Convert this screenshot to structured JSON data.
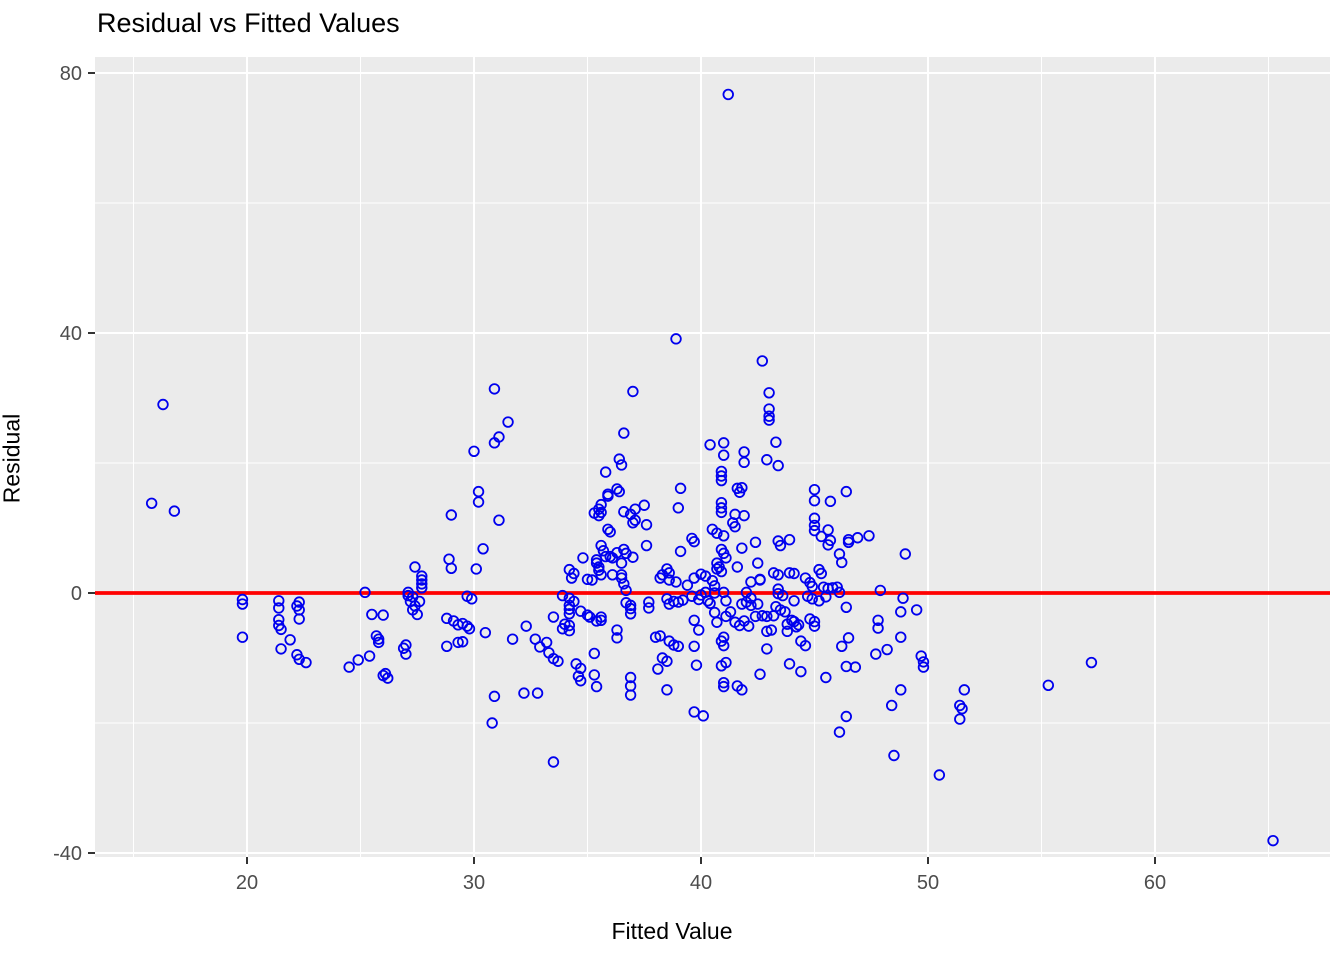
{
  "chart_data": {
    "type": "scatter",
    "title": "Residual vs Fitted Values",
    "xlabel": "Fitted Value",
    "ylabel": "Residual",
    "x_ticks": [
      20,
      30,
      40,
      50,
      60
    ],
    "y_ticks": [
      80,
      40,
      0,
      -40
    ],
    "x_minor_ticks": [
      15,
      25,
      35,
      45,
      55,
      65
    ],
    "y_minor_ticks": [
      60,
      20,
      -20
    ],
    "xlim": [
      13.3,
      67.7
    ],
    "ylim": [
      -40.6,
      82.5
    ],
    "legend": "none",
    "grid": "on",
    "reference_line": {
      "type": "hline",
      "y": 0,
      "color": "#FF0000"
    },
    "colors": {
      "point_stroke": "#0000EE",
      "panel_background": "#EBEBEB",
      "grid_line": "#FFFFFF",
      "axis_tick_text": "#4D4D4D",
      "axis_tick_mark": "#333333",
      "title_text": "#000000"
    },
    "points": [
      [
        15.8,
        13.8
      ],
      [
        16.3,
        29
      ],
      [
        16.8,
        12.6
      ],
      [
        19.8,
        -1
      ],
      [
        19.8,
        -1.7
      ],
      [
        19.8,
        -6.8
      ],
      [
        21.4,
        -1.2
      ],
      [
        21.4,
        -2.3
      ],
      [
        21.4,
        -4.1
      ],
      [
        21.4,
        -5
      ],
      [
        21.5,
        -5.6
      ],
      [
        21.5,
        -8.6
      ],
      [
        21.9,
        -7.2
      ],
      [
        22.3,
        -1.4
      ],
      [
        22.2,
        -2
      ],
      [
        22.3,
        -2.6
      ],
      [
        22.3,
        -4
      ],
      [
        22.2,
        -9.5
      ],
      [
        22.3,
        -10.2
      ],
      [
        22.6,
        -10.7
      ],
      [
        24.5,
        -11.4
      ],
      [
        24.9,
        -10.3
      ],
      [
        25.4,
        -9.7
      ],
      [
        25.2,
        0.1
      ],
      [
        25.5,
        -3.3
      ],
      [
        26,
        -3.4
      ],
      [
        25.7,
        -6.6
      ],
      [
        25.8,
        -7.1
      ],
      [
        25.8,
        -7.6
      ],
      [
        26,
        -12.7
      ],
      [
        26.2,
        -13.1
      ],
      [
        26.1,
        -12.4
      ],
      [
        26.9,
        -8.5
      ],
      [
        27,
        -8
      ],
      [
        27,
        -9.4
      ],
      [
        27.4,
        4
      ],
      [
        27.7,
        2.6
      ],
      [
        27.7,
        2
      ],
      [
        27.7,
        1.4
      ],
      [
        27.7,
        0.8
      ],
      [
        27.1,
        0.1
      ],
      [
        27.1,
        -0.4
      ],
      [
        27.3,
        -0.6
      ],
      [
        27.2,
        -1.3
      ],
      [
        27.6,
        -1.3
      ],
      [
        27.4,
        -2
      ],
      [
        27.3,
        -2.6
      ],
      [
        27.5,
        -3.3
      ],
      [
        28.9,
        5.2
      ],
      [
        29,
        3.8
      ],
      [
        30.1,
        3.7
      ],
      [
        30.4,
        6.8
      ],
      [
        28.8,
        -3.9
      ],
      [
        29.1,
        -4.3
      ],
      [
        29.3,
        -4.9
      ],
      [
        29.5,
        -4.7
      ],
      [
        29.7,
        -5.1
      ],
      [
        29.8,
        -5.5
      ],
      [
        29.7,
        -0.5
      ],
      [
        29.9,
        -0.9
      ],
      [
        28.8,
        -8.2
      ],
      [
        29.3,
        -7.6
      ],
      [
        29.5,
        -7.5
      ],
      [
        30.5,
        -6.1
      ],
      [
        30.9,
        -15.9
      ],
      [
        30.8,
        -20
      ],
      [
        29,
        12
      ],
      [
        30.2,
        15.6
      ],
      [
        30.2,
        14
      ],
      [
        30,
        21.8
      ],
      [
        30.9,
        23.1
      ],
      [
        31.1,
        24
      ],
      [
        30.9,
        31.4
      ],
      [
        31.5,
        26.3
      ],
      [
        31.1,
        11.2
      ],
      [
        32.3,
        -5.1
      ],
      [
        31.7,
        -7.1
      ],
      [
        32.7,
        -7.1
      ],
      [
        32.9,
        -8.3
      ],
      [
        33.2,
        -7.6
      ],
      [
        33.3,
        -9.2
      ],
      [
        33.5,
        -10.1
      ],
      [
        33.7,
        -10.5
      ],
      [
        32.2,
        -15.4
      ],
      [
        32.8,
        -15.4
      ],
      [
        33.5,
        -26
      ],
      [
        33.5,
        -3.7
      ],
      [
        34.2,
        3.6
      ],
      [
        34.3,
        2.3
      ],
      [
        34.4,
        3
      ],
      [
        35,
        2.1
      ],
      [
        35.2,
        2
      ],
      [
        34.8,
        5.4
      ],
      [
        33.9,
        -0.4
      ],
      [
        34.2,
        -0.8
      ],
      [
        34.4,
        -1.3
      ],
      [
        34.2,
        -1.9
      ],
      [
        34.2,
        -2.5
      ],
      [
        34.2,
        -3.2
      ],
      [
        34.7,
        -2.8
      ],
      [
        35,
        -3.4
      ],
      [
        35.1,
        -3.7
      ],
      [
        35.6,
        -3.7
      ],
      [
        34,
        -4.8
      ],
      [
        34.2,
        -5
      ],
      [
        33.9,
        -5.5
      ],
      [
        34.2,
        -5.8
      ],
      [
        34.5,
        -10.9
      ],
      [
        34.7,
        -11.6
      ],
      [
        34.6,
        -12.8
      ],
      [
        34.7,
        -13.5
      ],
      [
        35.3,
        -9.3
      ],
      [
        35.3,
        -12.6
      ],
      [
        35.4,
        -14.4
      ],
      [
        35.4,
        -4.3
      ],
      [
        35.6,
        -4.2
      ],
      [
        35.4,
        5.1
      ],
      [
        35.4,
        4.6
      ],
      [
        35.5,
        4
      ],
      [
        35.5,
        3.5
      ],
      [
        35.8,
        5.6
      ],
      [
        36,
        5.6
      ],
      [
        36.1,
        5.4
      ],
      [
        36.3,
        6.2
      ],
      [
        35.6,
        2.8
      ],
      [
        36.1,
        2.8
      ],
      [
        35.6,
        13.6
      ],
      [
        35.5,
        12.9
      ],
      [
        35.6,
        12.4
      ],
      [
        35.3,
        12.3
      ],
      [
        35.5,
        11.9
      ],
      [
        35.9,
        15.2
      ],
      [
        35.9,
        14.9
      ],
      [
        35.8,
        18.6
      ],
      [
        35.9,
        9.8
      ],
      [
        36,
        9.4
      ],
      [
        35.6,
        7.3
      ],
      [
        35.7,
        6.5
      ],
      [
        36.3,
        16
      ],
      [
        36.4,
        15.6
      ],
      [
        36.4,
        20.6
      ],
      [
        36.5,
        19.7
      ],
      [
        36.6,
        24.6
      ],
      [
        36.6,
        12.5
      ],
      [
        36.9,
        12.1
      ],
      [
        37.1,
        12.9
      ],
      [
        37.5,
        13.5
      ],
      [
        36.6,
        6.7
      ],
      [
        36.7,
        6.1
      ],
      [
        37,
        5.5
      ],
      [
        36.5,
        4.6
      ],
      [
        36.5,
        2.8
      ],
      [
        36.5,
        2.3
      ],
      [
        36.6,
        1.4
      ],
      [
        36.7,
        0.4
      ],
      [
        37,
        31
      ],
      [
        37,
        10.8
      ],
      [
        37.1,
        11.2
      ],
      [
        37.6,
        10.5
      ],
      [
        37.6,
        7.3
      ],
      [
        38.9,
        39.1
      ],
      [
        36.3,
        -5.7
      ],
      [
        36.3,
        -6.9
      ],
      [
        36.9,
        -13
      ],
      [
        36.9,
        -14.3
      ],
      [
        36.9,
        -15.7
      ],
      [
        36.9,
        -1.9
      ],
      [
        36.9,
        -3.2
      ],
      [
        36.7,
        -1.5
      ],
      [
        36.9,
        -2.4
      ],
      [
        37.7,
        -1.4
      ],
      [
        37.7,
        -2.3
      ],
      [
        38,
        -6.8
      ],
      [
        38.2,
        -6.6
      ],
      [
        38.3,
        2.8
      ],
      [
        38.6,
        2
      ],
      [
        38.9,
        1.7
      ],
      [
        38.2,
        2.3
      ],
      [
        38.5,
        3.7
      ],
      [
        38.6,
        3.1
      ],
      [
        38.5,
        -0.9
      ],
      [
        38.6,
        -1.7
      ],
      [
        38.8,
        -1.3
      ],
      [
        39,
        -1.4
      ],
      [
        39.2,
        -1.1
      ],
      [
        38.6,
        -7.4
      ],
      [
        38.8,
        -8
      ],
      [
        39,
        -8.2
      ],
      [
        38.3,
        -10
      ],
      [
        38.5,
        -10.5
      ],
      [
        38.1,
        -11.7
      ],
      [
        38.5,
        -14.9
      ],
      [
        39.1,
        16.1
      ],
      [
        39,
        13.1
      ],
      [
        39.1,
        6.4
      ],
      [
        39.6,
        8.4
      ],
      [
        39.7,
        7.9
      ],
      [
        39.4,
        1.2
      ],
      [
        39.7,
        2.3
      ],
      [
        40,
        2.9
      ],
      [
        40.2,
        2.6
      ],
      [
        40.5,
        1.9
      ],
      [
        40.6,
        1.1
      ],
      [
        40,
        -0.3
      ],
      [
        40.3,
        -1.2
      ],
      [
        40.2,
        0.1
      ],
      [
        39.6,
        -0.5
      ],
      [
        39.9,
        -1
      ],
      [
        40.4,
        -1.6
      ],
      [
        40.6,
        0
      ],
      [
        41,
        0.1
      ],
      [
        41.1,
        -1.2
      ],
      [
        42,
        0.1
      ],
      [
        42.2,
        -0.8
      ],
      [
        39.7,
        -4.2
      ],
      [
        39.9,
        -5.7
      ],
      [
        39.7,
        -8.2
      ],
      [
        39.8,
        -11.1
      ],
      [
        39.7,
        -18.3
      ],
      [
        40.1,
        -18.9
      ],
      [
        40.6,
        -3
      ],
      [
        40.7,
        -4.5
      ],
      [
        41.1,
        -3.6
      ],
      [
        41.3,
        -2.9
      ],
      [
        41,
        -6.8
      ],
      [
        40.9,
        -7.4
      ],
      [
        41,
        -8.1
      ],
      [
        40.9,
        -11.2
      ],
      [
        41.1,
        -10.7
      ],
      [
        41,
        -13.8
      ],
      [
        41,
        -14.4
      ],
      [
        40.9,
        18.7
      ],
      [
        40.9,
        18
      ],
      [
        40.9,
        17.3
      ],
      [
        40.9,
        13.9
      ],
      [
        40.9,
        13.1
      ],
      [
        40.9,
        12.4
      ],
      [
        40.4,
        22.8
      ],
      [
        41,
        23.1
      ],
      [
        41,
        21.2
      ],
      [
        41.9,
        21.7
      ],
      [
        41.9,
        20.1
      ],
      [
        41.6,
        16.1
      ],
      [
        41.7,
        15.5
      ],
      [
        41.8,
        16.2
      ],
      [
        41.5,
        12.1
      ],
      [
        41.9,
        11.9
      ],
      [
        41.4,
        10.8
      ],
      [
        41.5,
        10.2
      ],
      [
        40.5,
        9.8
      ],
      [
        40.7,
        9.2
      ],
      [
        41,
        8.8
      ],
      [
        40.9,
        6.7
      ],
      [
        41,
        6.1
      ],
      [
        41.1,
        5.4
      ],
      [
        41.8,
        6.9
      ],
      [
        40.7,
        4.6
      ],
      [
        40.8,
        4
      ],
      [
        40.7,
        3.7
      ],
      [
        40.9,
        3.3
      ],
      [
        41.6,
        4
      ],
      [
        41.2,
        76.7
      ],
      [
        42.5,
        4.6
      ],
      [
        42.6,
        2.1
      ],
      [
        42.2,
        1.7
      ],
      [
        42.6,
        2
      ],
      [
        43.2,
        3.1
      ],
      [
        43.4,
        0.6
      ],
      [
        42.7,
        35.7
      ],
      [
        43,
        30.8
      ],
      [
        43,
        28.3
      ],
      [
        43,
        27.2
      ],
      [
        43,
        26.6
      ],
      [
        43.3,
        23.2
      ],
      [
        42.9,
        20.5
      ],
      [
        43.4,
        19.6
      ],
      [
        41.8,
        -1.7
      ],
      [
        42,
        -1.4
      ],
      [
        42.2,
        -1.9
      ],
      [
        42.5,
        -1.7
      ],
      [
        42.4,
        -3.6
      ],
      [
        42.7,
        -3.5
      ],
      [
        42.9,
        -3.6
      ],
      [
        43.2,
        -3.5
      ],
      [
        41.9,
        -4.3
      ],
      [
        42.1,
        -5.1
      ],
      [
        41.5,
        -4.5
      ],
      [
        41.7,
        -5
      ],
      [
        42.9,
        -5.9
      ],
      [
        43.1,
        -5.7
      ],
      [
        42.9,
        -8.6
      ],
      [
        42.6,
        -12.5
      ],
      [
        41.6,
        -14.3
      ],
      [
        41.8,
        -14.9
      ],
      [
        43.4,
        2.8
      ],
      [
        44.1,
        3
      ],
      [
        43.9,
        8.2
      ],
      [
        43.4,
        8
      ],
      [
        43.5,
        7.3
      ],
      [
        42.4,
        7.8
      ],
      [
        43.9,
        3.1
      ],
      [
        44.6,
        2.3
      ],
      [
        44.8,
        1.6
      ],
      [
        44.9,
        1
      ],
      [
        43.4,
        -0.1
      ],
      [
        43.6,
        -0.4
      ],
      [
        44.1,
        -1.2
      ],
      [
        43.3,
        -2.1
      ],
      [
        43.5,
        -2.6
      ],
      [
        43.7,
        -2.9
      ],
      [
        44,
        -4.2
      ],
      [
        44.2,
        -5.2
      ],
      [
        43.8,
        -5.9
      ],
      [
        43.8,
        -4.8
      ],
      [
        44.1,
        -4.4
      ],
      [
        44.3,
        -4.9
      ],
      [
        44.4,
        -7.4
      ],
      [
        44.6,
        -8.1
      ],
      [
        43.9,
        -10.9
      ],
      [
        44.4,
        -12.1
      ],
      [
        45,
        15.9
      ],
      [
        45,
        14.2
      ],
      [
        45.7,
        14.1
      ],
      [
        46.4,
        15.6
      ],
      [
        45,
        11.5
      ],
      [
        45,
        10.4
      ],
      [
        45,
        9.6
      ],
      [
        45.6,
        9.7
      ],
      [
        45.3,
        8.7
      ],
      [
        45.7,
        8.1
      ],
      [
        45.6,
        7.4
      ],
      [
        46.5,
        7.8
      ],
      [
        46.5,
        8.2
      ],
      [
        46.9,
        8.5
      ],
      [
        47.4,
        8.8
      ],
      [
        46.1,
        6
      ],
      [
        46.2,
        4.7
      ],
      [
        45.2,
        3.6
      ],
      [
        45.3,
        3
      ],
      [
        45.4,
        0.9
      ],
      [
        45.6,
        0.7
      ],
      [
        45.8,
        0.8
      ],
      [
        46,
        0.9
      ],
      [
        46.1,
        0.1
      ],
      [
        44.7,
        -0.5
      ],
      [
        44.9,
        -0.9
      ],
      [
        45.2,
        -1.2
      ],
      [
        45.5,
        -0.6
      ],
      [
        44.8,
        -4
      ],
      [
        45,
        -4.4
      ],
      [
        45,
        -5.1
      ],
      [
        46.4,
        -2.2
      ],
      [
        45.5,
        -13
      ],
      [
        46.2,
        -8.2
      ],
      [
        46.5,
        -6.9
      ],
      [
        46.4,
        -11.3
      ],
      [
        46.8,
        -11.4
      ],
      [
        46.4,
        -19
      ],
      [
        46.1,
        -21.4
      ],
      [
        47.9,
        0.4
      ],
      [
        47.8,
        -4.2
      ],
      [
        47.8,
        -5.4
      ],
      [
        47.7,
        -9.4
      ],
      [
        48.2,
        -8.7
      ],
      [
        48.8,
        -2.9
      ],
      [
        48.8,
        -6.8
      ],
      [
        48.8,
        -14.9
      ],
      [
        48.4,
        -17.3
      ],
      [
        48.5,
        -25
      ],
      [
        49,
        6
      ],
      [
        48.9,
        -0.8
      ],
      [
        49.5,
        -2.6
      ],
      [
        49.7,
        -9.7
      ],
      [
        49.8,
        -10.6
      ],
      [
        49.8,
        -11.4
      ],
      [
        50.5,
        -28
      ],
      [
        51.6,
        -14.9
      ],
      [
        51.4,
        -17.3
      ],
      [
        51.5,
        -17.8
      ],
      [
        51.4,
        -19.4
      ],
      [
        55.3,
        -14.2
      ],
      [
        57.2,
        -10.7
      ],
      [
        65.2,
        -38.1
      ]
    ]
  }
}
